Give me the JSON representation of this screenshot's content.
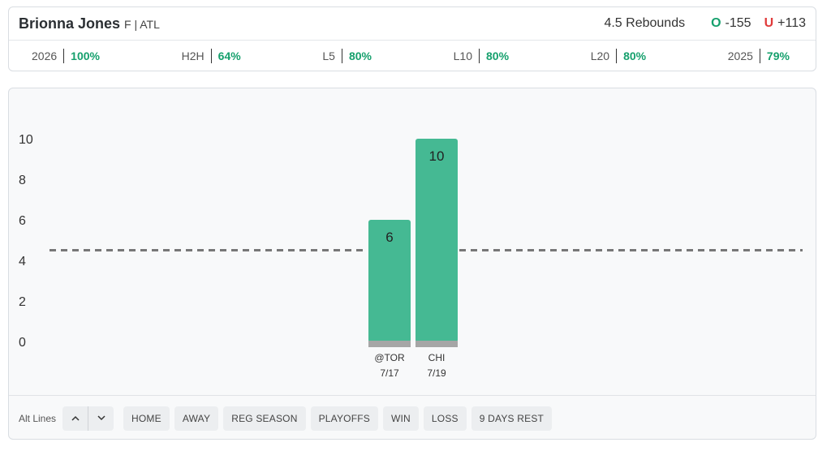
{
  "player": {
    "name": "Brionna Jones",
    "meta": "F | ATL"
  },
  "market": {
    "line": "4.5 Rebounds",
    "over_letter": "O",
    "over_odds": "-155",
    "under_letter": "U",
    "under_odds": "+113"
  },
  "hit_rates": [
    {
      "label": "2026",
      "value": "100%"
    },
    {
      "label": "H2H",
      "value": "64%"
    },
    {
      "label": "L5",
      "value": "80%"
    },
    {
      "label": "L10",
      "value": "80%"
    },
    {
      "label": "L20",
      "value": "80%"
    },
    {
      "label": "2025",
      "value": "79%"
    }
  ],
  "controls": {
    "alt_lines_label": "Alt Lines",
    "up_icon": "chevron-up-icon",
    "down_icon": "chevron-down-icon",
    "filters": [
      "HOME",
      "AWAY",
      "REG SEASON",
      "PLAYOFFS",
      "WIN",
      "LOSS",
      "9 DAYS REST"
    ]
  },
  "colors": {
    "bar": "#45b993",
    "bar_base": "#a6a6a6",
    "accent_green": "#16a06d",
    "accent_red": "#e03b3b",
    "line_dash": "#777777"
  },
  "chart_data": {
    "type": "bar",
    "categories": [
      "@TOR\n7/17",
      "CHI\n7/19"
    ],
    "category_lines": [
      [
        "@TOR",
        "7/17"
      ],
      [
        "CHI",
        "7/19"
      ]
    ],
    "values": [
      6,
      10
    ],
    "data_labels": [
      "6",
      "10"
    ],
    "reference_line": 4.5,
    "ylim": [
      0,
      10
    ],
    "yticks": [
      0,
      2,
      4,
      6,
      8,
      10
    ],
    "grid": false,
    "title": "",
    "xlabel": "",
    "ylabel": ""
  }
}
